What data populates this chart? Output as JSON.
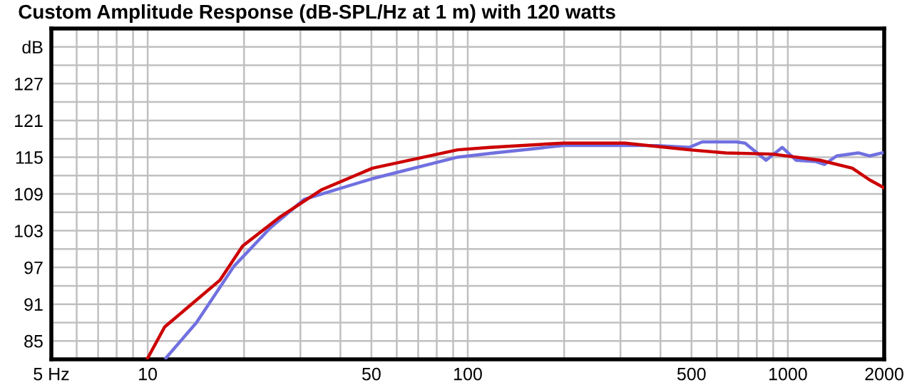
{
  "chart_data": {
    "type": "line",
    "title": "Custom Amplitude Response (dB-SPL/Hz at 1 m) with 120 watts",
    "log": "x",
    "grid": true,
    "legend": false,
    "marker": "none",
    "line_style": "solid",
    "xlim": [
      5,
      2000
    ],
    "xticks": [
      {
        "value": 5,
        "label": "5 Hz"
      },
      {
        "value": 6,
        "label": null
      },
      {
        "value": 7,
        "label": null
      },
      {
        "value": 8,
        "label": null
      },
      {
        "value": 9,
        "label": null
      },
      10,
      {
        "value": 20,
        "label": null
      },
      {
        "value": 30,
        "label": null
      },
      {
        "value": 40,
        "label": null
      },
      50,
      {
        "value": 60,
        "label": null
      },
      {
        "value": 70,
        "label": null
      },
      {
        "value": 80,
        "label": null
      },
      {
        "value": 90,
        "label": null
      },
      100,
      {
        "value": 200,
        "label": null
      },
      {
        "value": 300,
        "label": null
      },
      {
        "value": 400,
        "label": null
      },
      500,
      {
        "value": 600,
        "label": null
      },
      {
        "value": 700,
        "label": null
      },
      {
        "value": 800,
        "label": null
      },
      {
        "value": 900,
        "label": null
      },
      1000,
      2000
    ],
    "ylim": [
      82,
      136
    ],
    "yticks": [
      85,
      {
        "value": 88,
        "label": null
      },
      91,
      {
        "value": 94,
        "label": null
      },
      97,
      {
        "value": 100,
        "label": null
      },
      103,
      {
        "value": 106,
        "label": null
      },
      109,
      {
        "value": 112,
        "label": null
      },
      115,
      {
        "value": 118,
        "label": null
      },
      121,
      {
        "value": 124,
        "label": null
      },
      127,
      {
        "value": 130,
        "label": null
      },
      {
        "value": 133,
        "label": "dB"
      }
    ],
    "series": [
      {
        "color": "#cc0000",
        "x": [
          10,
          11.3,
          16.8,
          19.8,
          26,
          35,
          50.4,
          93,
          117,
          199,
          310,
          492,
          640,
          895,
          1260,
          1590,
          1800,
          2000
        ],
        "values": [
          82.2,
          87.3,
          94.9,
          100.5,
          105.3,
          109.7,
          113.2,
          116.2,
          116.6,
          117.3,
          117.3,
          116.2,
          115.7,
          115.5,
          114.5,
          113.2,
          111.3,
          110
        ]
      },
      {
        "color": "#7070e0",
        "x": [
          11.4,
          14.2,
          18.6,
          24.2,
          30.8,
          50.4,
          93,
          121,
          199,
          390,
          492,
          540,
          690,
          735,
          855,
          960,
          1060,
          1220,
          1300,
          1420,
          1660,
          1800,
          1970
        ],
        "values": [
          82.2,
          88,
          97.2,
          103.5,
          108.1,
          111.5,
          115,
          115.7,
          116.9,
          116.9,
          116.6,
          117.5,
          117.5,
          117.3,
          114.5,
          116.6,
          114.5,
          114.3,
          113.8,
          115.2,
          115.7,
          115.2,
          115.7
        ]
      }
    ]
  }
}
